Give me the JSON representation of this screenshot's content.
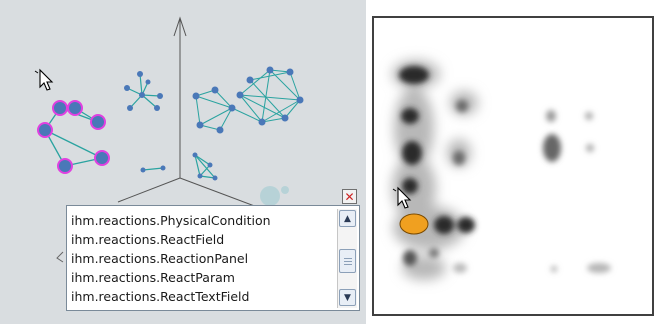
{
  "popup": {
    "items": [
      "ihm.reactions.PhysicalCondition",
      "ihm.reactions.ReactField",
      "ihm.reactions.ReactionPanel",
      "ihm.reactions.ReactParam",
      "ihm.reactions.ReactTextField"
    ],
    "close_glyph": "✕",
    "scroll_up_glyph": "▲",
    "scroll_down_glyph": "▼"
  },
  "icons": {
    "cursor_left": "arrow-cursor-icon",
    "cursor_right": "arrow-cursor-icon",
    "close": "close-icon"
  },
  "colors": {
    "panel_background": "#d9dde0",
    "node_blue": "#4a78b8",
    "edge_teal": "#2aa3a0",
    "selection_magenta": "#e040e0",
    "heat_highlight": "#f0a020",
    "heat_dark": "#1a1a1a"
  }
}
